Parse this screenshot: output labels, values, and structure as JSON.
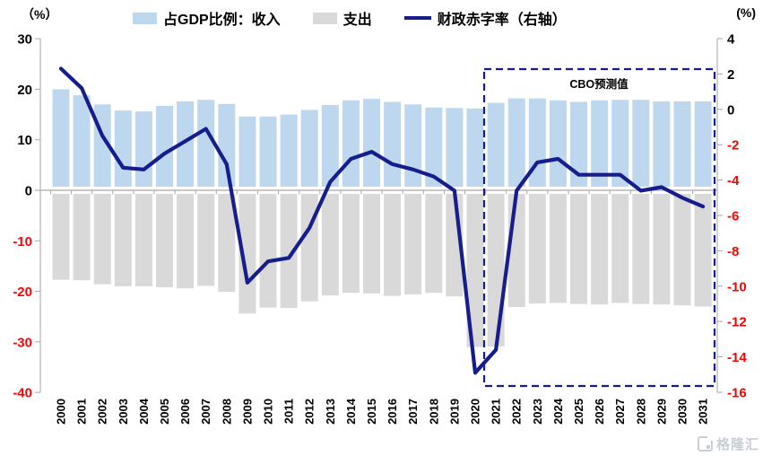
{
  "units": {
    "left": "（%）",
    "right": "(%)"
  },
  "legend": {
    "revenue": "占GDP比例：收入",
    "expenditure": "支出",
    "deficit": "财政赤字率（右轴）"
  },
  "annotation": {
    "forecast_label": "CBO预测值"
  },
  "watermark": {
    "label": "格隆汇"
  },
  "colors": {
    "revenue_bar": "#BDD7EE",
    "expenditure_bar": "#D9D9D9",
    "deficit_line": "#161D8C",
    "forecast_box": "#161D8C",
    "axis": "#A6A6A6",
    "tick_positive": "#000000",
    "tick_negative": "#FF0000"
  },
  "chart_data": {
    "type": "bar+line combo",
    "title": "",
    "legend_position": "top",
    "grid": false,
    "categories": [
      "2000",
      "2001",
      "2002",
      "2003",
      "2004",
      "2005",
      "2006",
      "2007",
      "2008",
      "2009",
      "2010",
      "2011",
      "2012",
      "2013",
      "2014",
      "2015",
      "2016",
      "2017",
      "2018",
      "2019",
      "2020",
      "2021",
      "2022",
      "2023",
      "2024",
      "2025",
      "2026",
      "2027",
      "2028",
      "2029",
      "2030",
      "2031"
    ],
    "series": [
      {
        "name": "占GDP比例：收入",
        "type": "bar",
        "axis": "left",
        "color": "#BDD7EE",
        "values": [
          20.0,
          18.8,
          17.0,
          15.8,
          15.6,
          16.7,
          17.6,
          17.9,
          17.1,
          14.6,
          14.6,
          15.0,
          15.9,
          16.9,
          17.8,
          18.1,
          17.5,
          17.0,
          16.4,
          16.3,
          16.2,
          17.3,
          18.2,
          18.2,
          17.8,
          17.5,
          17.8,
          17.9,
          17.9,
          17.6,
          17.6,
          17.6
        ]
      },
      {
        "name": "支出",
        "type": "bar",
        "axis": "left",
        "color": "#D9D9D9",
        "values": [
          -17.7,
          -17.8,
          -18.6,
          -19.0,
          -19.0,
          -19.2,
          -19.4,
          -18.9,
          -20.1,
          -24.4,
          -23.2,
          -23.3,
          -22.0,
          -20.8,
          -20.3,
          -20.4,
          -20.9,
          -20.6,
          -20.3,
          -21.0,
          -31.0,
          -30.9,
          -23.1,
          -22.4,
          -22.3,
          -22.5,
          -22.6,
          -22.3,
          -22.5,
          -22.6,
          -22.8,
          -23.0
        ]
      },
      {
        "name": "财政赤字率（右轴）",
        "type": "line",
        "axis": "right",
        "color": "#161D8C",
        "values": [
          2.3,
          1.2,
          -1.5,
          -3.3,
          -3.4,
          -2.5,
          -1.8,
          -1.1,
          -3.1,
          -9.8,
          -8.6,
          -8.4,
          -6.7,
          -4.1,
          -2.8,
          -2.4,
          -3.1,
          -3.4,
          -3.8,
          -4.6,
          -14.9,
          -13.6,
          -4.6,
          -3.0,
          -2.8,
          -3.7,
          -3.7,
          -3.7,
          -4.6,
          -4.4,
          -5.0,
          -5.5
        ]
      }
    ],
    "left_axis": {
      "unit": "（%）",
      "min": -40,
      "max": 30,
      "ticks": [
        30,
        20,
        10,
        0,
        -10,
        -20,
        -30,
        -40
      ]
    },
    "right_axis": {
      "unit": "(%)",
      "min": -16,
      "max": 4,
      "ticks": [
        4,
        2,
        0,
        -2,
        -4,
        -6,
        -8,
        -10,
        -12,
        -14,
        -16
      ]
    },
    "annotation_box": {
      "label": "CBO预测值",
      "start_category": "2021",
      "end_category": "2031"
    }
  }
}
